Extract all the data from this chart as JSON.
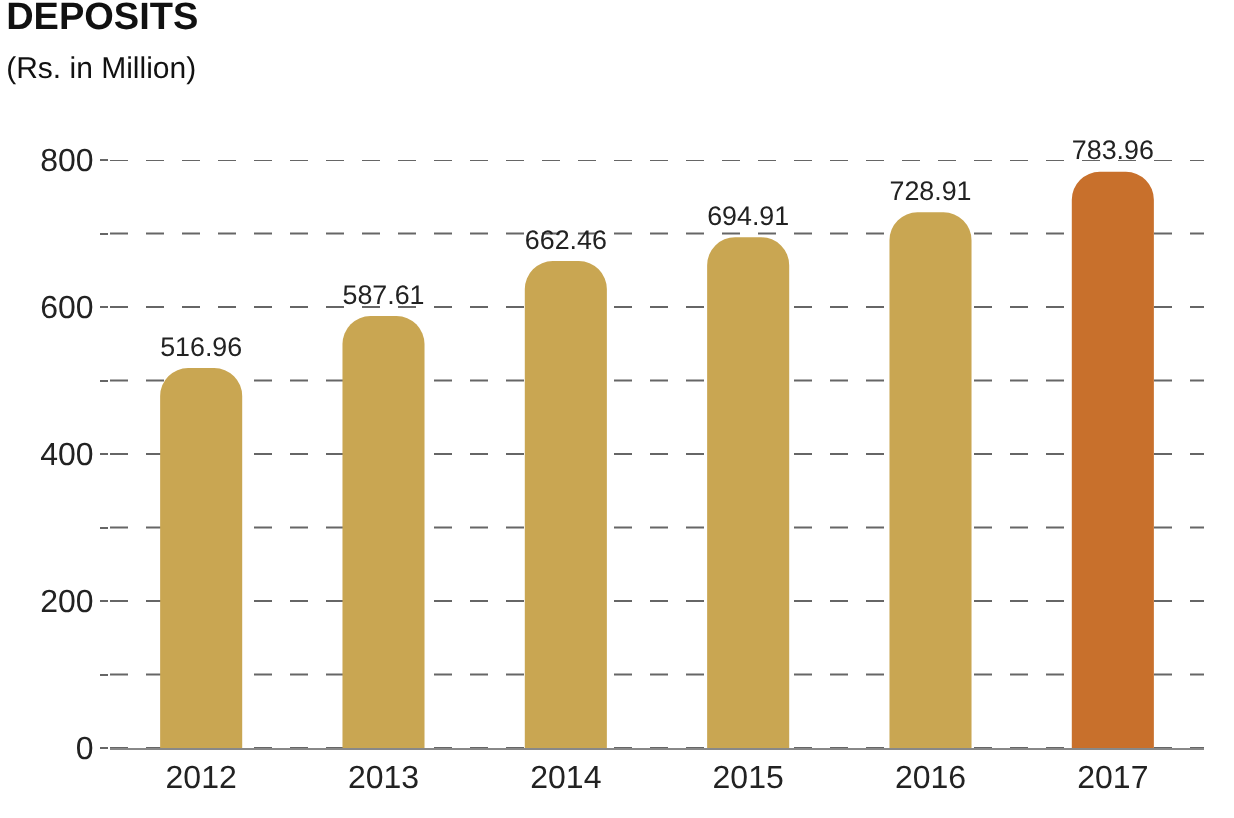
{
  "chart_data": {
    "type": "bar",
    "title": "DEPOSITS",
    "subtitle": "(Rs. in Million)",
    "categories": [
      "2012",
      "2013",
      "2014",
      "2015",
      "2016",
      "2017"
    ],
    "values": [
      516.96,
      587.61,
      662.46,
      694.91,
      728.91,
      783.96
    ],
    "colors": [
      "#c9a652",
      "#c9a652",
      "#c9a652",
      "#c9a652",
      "#c9a652",
      "#c8702c"
    ],
    "ylim": [
      0,
      800
    ],
    "yticks": [
      0,
      {
        "value": 100,
        "label": null
      },
      200,
      {
        "value": 300,
        "label": null
      },
      400,
      {
        "value": 500,
        "label": null
      },
      600,
      {
        "value": 700,
        "label": null
      },
      800
    ],
    "grid": "y",
    "data_labels": true
  }
}
